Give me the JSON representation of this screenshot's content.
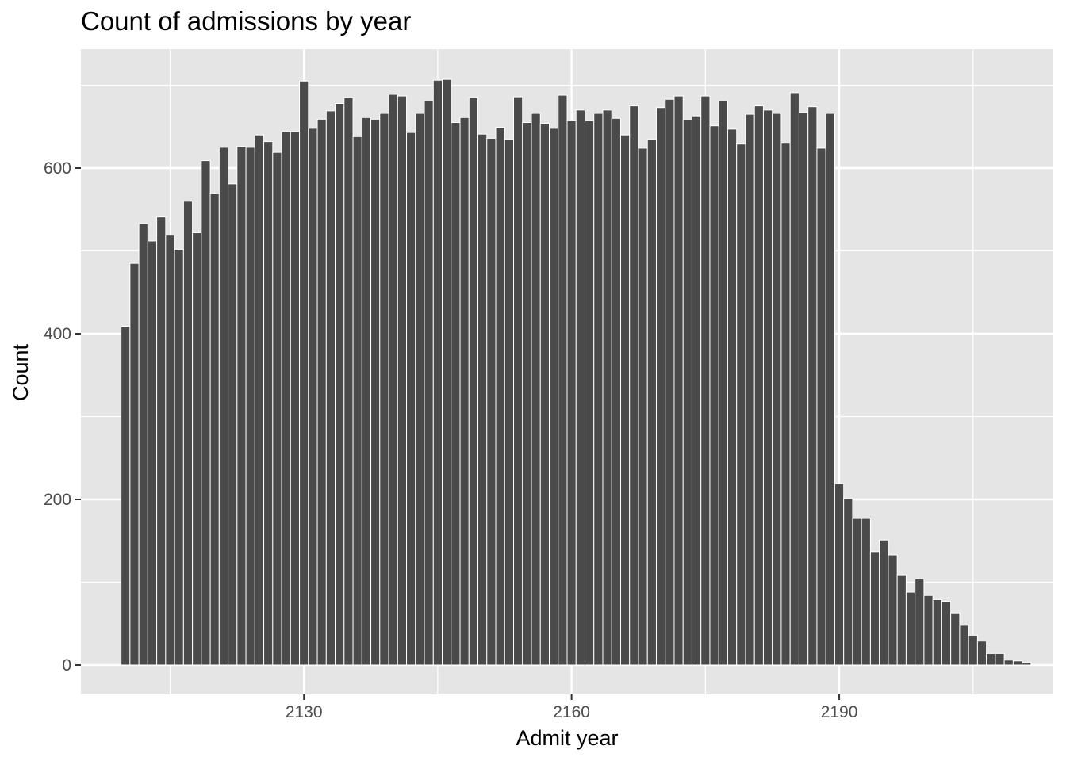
{
  "chart_data": {
    "type": "bar",
    "title": "Count of admissions by year",
    "xlabel": "Admit year",
    "ylabel": "Count",
    "x": [
      2110,
      2111,
      2112,
      2113,
      2114,
      2115,
      2116,
      2117,
      2118,
      2119,
      2120,
      2121,
      2122,
      2123,
      2124,
      2125,
      2126,
      2127,
      2128,
      2129,
      2130,
      2131,
      2132,
      2133,
      2134,
      2135,
      2136,
      2137,
      2138,
      2139,
      2140,
      2141,
      2142,
      2143,
      2144,
      2145,
      2146,
      2147,
      2148,
      2149,
      2150,
      2151,
      2152,
      2153,
      2154,
      2155,
      2156,
      2157,
      2158,
      2159,
      2160,
      2161,
      2162,
      2163,
      2164,
      2165,
      2166,
      2167,
      2168,
      2169,
      2170,
      2171,
      2172,
      2173,
      2174,
      2175,
      2176,
      2177,
      2178,
      2179,
      2180,
      2181,
      2182,
      2183,
      2184,
      2185,
      2186,
      2187,
      2188,
      2189,
      2190,
      2191,
      2192,
      2193,
      2194,
      2195,
      2196,
      2197,
      2198,
      2199,
      2200,
      2201,
      2202,
      2203,
      2204,
      2205,
      2206,
      2207,
      2208,
      2209,
      2210,
      2211
    ],
    "values": [
      409,
      485,
      533,
      512,
      541,
      519,
      502,
      560,
      522,
      609,
      569,
      625,
      581,
      626,
      625,
      640,
      632,
      619,
      644,
      644,
      705,
      648,
      659,
      669,
      678,
      685,
      638,
      661,
      659,
      666,
      689,
      687,
      643,
      666,
      681,
      706,
      707,
      655,
      661,
      685,
      641,
      636,
      649,
      635,
      686,
      655,
      666,
      654,
      648,
      688,
      657,
      670,
      657,
      666,
      670,
      660,
      640,
      675,
      624,
      635,
      673,
      683,
      687,
      658,
      663,
      687,
      651,
      681,
      647,
      629,
      665,
      675,
      670,
      666,
      630,
      691,
      667,
      674,
      624,
      666,
      219,
      201,
      177,
      177,
      137,
      151,
      133,
      109,
      88,
      104,
      84,
      79,
      77,
      63,
      48,
      36,
      29,
      14,
      14,
      6,
      5,
      3
    ],
    "xlim": [
      2105,
      2214
    ],
    "ylim": [
      0,
      735
    ],
    "x_ticks": [
      2130,
      2160,
      2190
    ],
    "x_tick_labels": [
      "2130",
      "2160",
      "2190"
    ],
    "y_ticks": [
      0,
      200,
      400,
      600
    ],
    "y_tick_labels": [
      "0",
      "200",
      "400",
      "600"
    ],
    "grid": true,
    "legend": "none",
    "colors": {
      "panel_background": "#e5e5e5",
      "grid": "#ffffff",
      "bar_fill": "#4a4a4a",
      "bar_outline": "#ffffff",
      "tick_text": "#4d4d4d",
      "title_text": "#000000"
    }
  }
}
